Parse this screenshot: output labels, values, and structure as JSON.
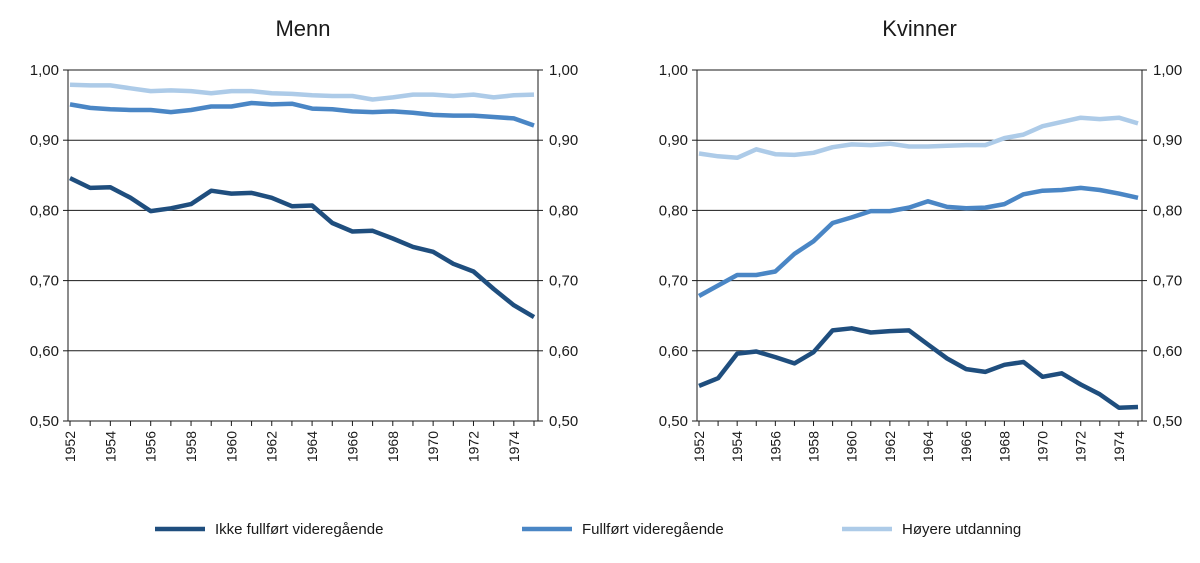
{
  "chart_data": [
    {
      "type": "line",
      "title": "Menn",
      "x": [
        1952,
        1953,
        1954,
        1955,
        1956,
        1957,
        1958,
        1959,
        1960,
        1961,
        1962,
        1963,
        1964,
        1965,
        1966,
        1967,
        1968,
        1969,
        1970,
        1971,
        1972,
        1973,
        1974,
        1975
      ],
      "xticks": [
        "1952",
        "1954",
        "1956",
        "1958",
        "1960",
        "1962",
        "1964",
        "1966",
        "1968",
        "1970",
        "1972",
        "1974"
      ],
      "ylim": [
        0.5,
        1.0
      ],
      "yticks": [
        "0,50",
        "0,60",
        "0,70",
        "0,80",
        "0,90",
        "1,00"
      ],
      "grid": "horizontal",
      "series": [
        {
          "name": "Ikke fullført videregående",
          "color": "#1f4e7e",
          "values": [
            0.846,
            0.832,
            0.833,
            0.818,
            0.799,
            0.803,
            0.809,
            0.828,
            0.824,
            0.825,
            0.818,
            0.806,
            0.807,
            0.782,
            0.77,
            0.771,
            0.76,
            0.748,
            0.741,
            0.724,
            0.713,
            0.688,
            0.665,
            0.648
          ]
        },
        {
          "name": "Fullført videregående",
          "color": "#4a86c5",
          "values": [
            0.951,
            0.946,
            0.944,
            0.943,
            0.943,
            0.94,
            0.943,
            0.948,
            0.948,
            0.953,
            0.951,
            0.952,
            0.945,
            0.944,
            0.941,
            0.94,
            0.941,
            0.939,
            0.936,
            0.935,
            0.935,
            0.933,
            0.931,
            0.921
          ]
        },
        {
          "name": "Høyere utdanning",
          "color": "#adcbe8",
          "values": [
            0.979,
            0.978,
            0.978,
            0.974,
            0.97,
            0.971,
            0.97,
            0.967,
            0.97,
            0.97,
            0.967,
            0.966,
            0.964,
            0.963,
            0.963,
            0.958,
            0.961,
            0.965,
            0.965,
            0.963,
            0.965,
            0.961,
            0.964,
            0.965
          ]
        }
      ]
    },
    {
      "type": "line",
      "title": "Kvinner",
      "x": [
        1952,
        1953,
        1954,
        1955,
        1956,
        1957,
        1958,
        1959,
        1960,
        1961,
        1962,
        1963,
        1964,
        1965,
        1966,
        1967,
        1968,
        1969,
        1970,
        1971,
        1972,
        1973,
        1974,
        1975
      ],
      "xticks": [
        "1952",
        "1954",
        "1956",
        "1958",
        "1960",
        "1962",
        "1964",
        "1966",
        "1968",
        "1970",
        "1972",
        "1974"
      ],
      "ylim": [
        0.5,
        1.0
      ],
      "yticks": [
        "0,50",
        "0,60",
        "0,70",
        "0,80",
        "0,90",
        "1,00"
      ],
      "grid": "horizontal",
      "series": [
        {
          "name": "Ikke fullført videregående",
          "color": "#1f4e7e",
          "values": [
            0.55,
            0.561,
            0.596,
            0.599,
            0.591,
            0.582,
            0.598,
            0.629,
            0.632,
            0.626,
            0.628,
            0.629,
            0.609,
            0.589,
            0.574,
            0.57,
            0.58,
            0.584,
            0.563,
            0.568,
            0.552,
            0.538,
            0.519,
            0.52
          ]
        },
        {
          "name": "Fullført videregående",
          "color": "#4a86c5",
          "values": [
            0.678,
            0.693,
            0.708,
            0.708,
            0.713,
            0.738,
            0.756,
            0.782,
            0.79,
            0.799,
            0.799,
            0.804,
            0.813,
            0.805,
            0.803,
            0.804,
            0.809,
            0.823,
            0.828,
            0.829,
            0.832,
            0.829,
            0.824,
            0.818
          ]
        },
        {
          "name": "Høyere utdanning",
          "color": "#adcbe8",
          "values": [
            0.881,
            0.877,
            0.875,
            0.887,
            0.88,
            0.879,
            0.882,
            0.89,
            0.894,
            0.893,
            0.895,
            0.891,
            0.891,
            0.892,
            0.893,
            0.893,
            0.903,
            0.908,
            0.92,
            0.926,
            0.932,
            0.93,
            0.932,
            0.924
          ]
        }
      ]
    }
  ],
  "legend": {
    "placement": "bottom-center",
    "items": [
      {
        "label": "Ikke fullført videregående",
        "color": "#1f4e7e"
      },
      {
        "label": "Fullført videregående",
        "color": "#4a86c5"
      },
      {
        "label": "Høyere utdanning",
        "color": "#adcbe8"
      }
    ]
  }
}
